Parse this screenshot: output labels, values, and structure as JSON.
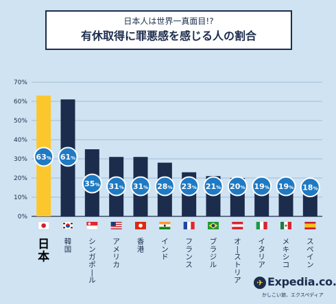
{
  "header": {
    "subtitle": "日本人は世界一真面目!?",
    "title": "有休取得に罪悪感を感じる人の割合"
  },
  "brand": {
    "name": "Expedia.co.jp",
    "tagline": "かしこい旅、エクスペディア"
  },
  "colors": {
    "highlight": "#fcc72c",
    "bar": "#1c2c4c",
    "badge": "#1f7ac3",
    "background": "#cfe3f2"
  },
  "chart_data": {
    "type": "bar",
    "categories": [
      "日本",
      "韓国",
      "シンガポール",
      "アメリカ",
      "香港",
      "インド",
      "フランス",
      "ブラジル",
      "オーストリア",
      "イタリア",
      "メキシコ",
      "スペイン"
    ],
    "values": [
      63,
      61,
      35,
      31,
      31,
      28,
      23,
      21,
      20,
      19,
      19,
      18
    ],
    "value_labels": [
      "63%",
      "61%",
      "35%",
      "31%",
      "31%",
      "28%",
      "23%",
      "21%",
      "20%",
      "19%",
      "19%",
      "18%"
    ],
    "flags": [
      "japan-flag",
      "korea-flag",
      "singapore-flag",
      "usa-flag",
      "hong-kong-flag",
      "india-flag",
      "france-flag",
      "brazil-flag",
      "austria-flag",
      "italy-flag",
      "mexico-flag",
      "spain-flag"
    ],
    "yticks": [
      "0%",
      "10%",
      "20%",
      "30%",
      "40%",
      "50%",
      "60%",
      "70%"
    ],
    "ylim": [
      0,
      70
    ],
    "highlight_index": 0,
    "grid": true
  }
}
